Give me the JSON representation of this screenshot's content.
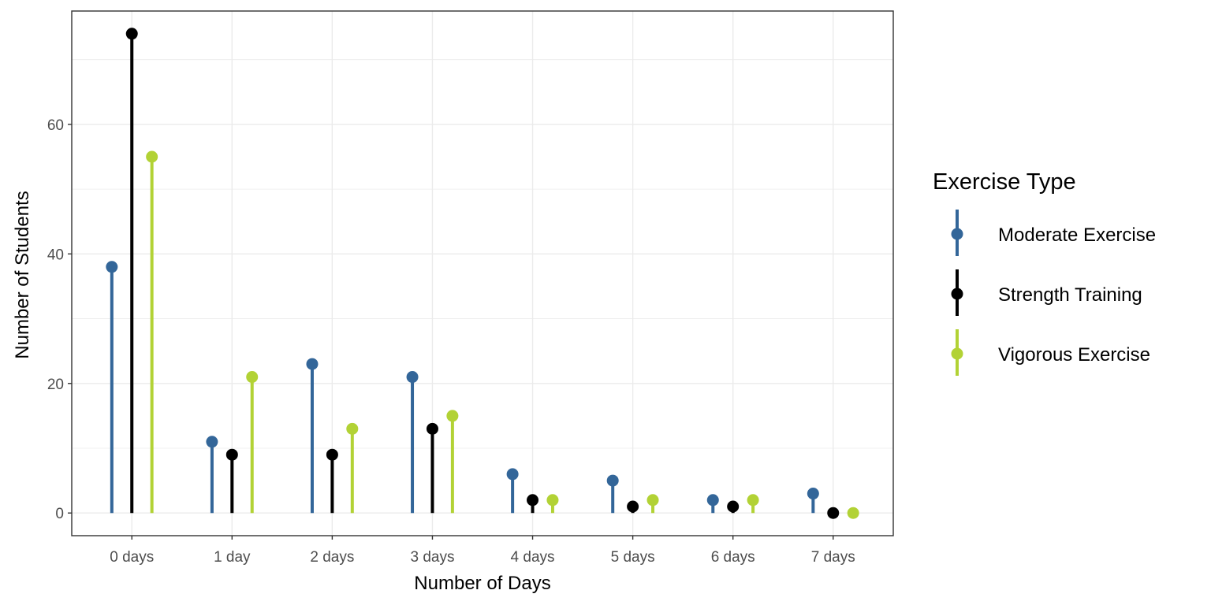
{
  "chart_data": {
    "type": "lollipop",
    "title": "",
    "xlabel": "Number of Days",
    "ylabel": "Number of Students",
    "categories": [
      "0 days",
      "1 day",
      "2 days",
      "3 days",
      "4 days",
      "5 days",
      "6 days",
      "7 days"
    ],
    "yticks": [
      "0",
      "20",
      "40",
      "60"
    ],
    "ylim": [
      -3.5,
      77.5
    ],
    "grid": true,
    "legend": {
      "title": "Exercise Type",
      "position": "right"
    },
    "series": [
      {
        "name": "Moderate Exercise",
        "color": "#336699",
        "values": [
          38,
          11,
          23,
          21,
          6,
          5,
          2,
          3
        ]
      },
      {
        "name": "Strength Training",
        "color": "#000000",
        "values": [
          74,
          9,
          9,
          13,
          2,
          1,
          1,
          0
        ]
      },
      {
        "name": "Vigorous Exercise",
        "color": "#b2d235",
        "values": [
          55,
          21,
          13,
          15,
          2,
          2,
          2,
          0
        ]
      }
    ]
  }
}
